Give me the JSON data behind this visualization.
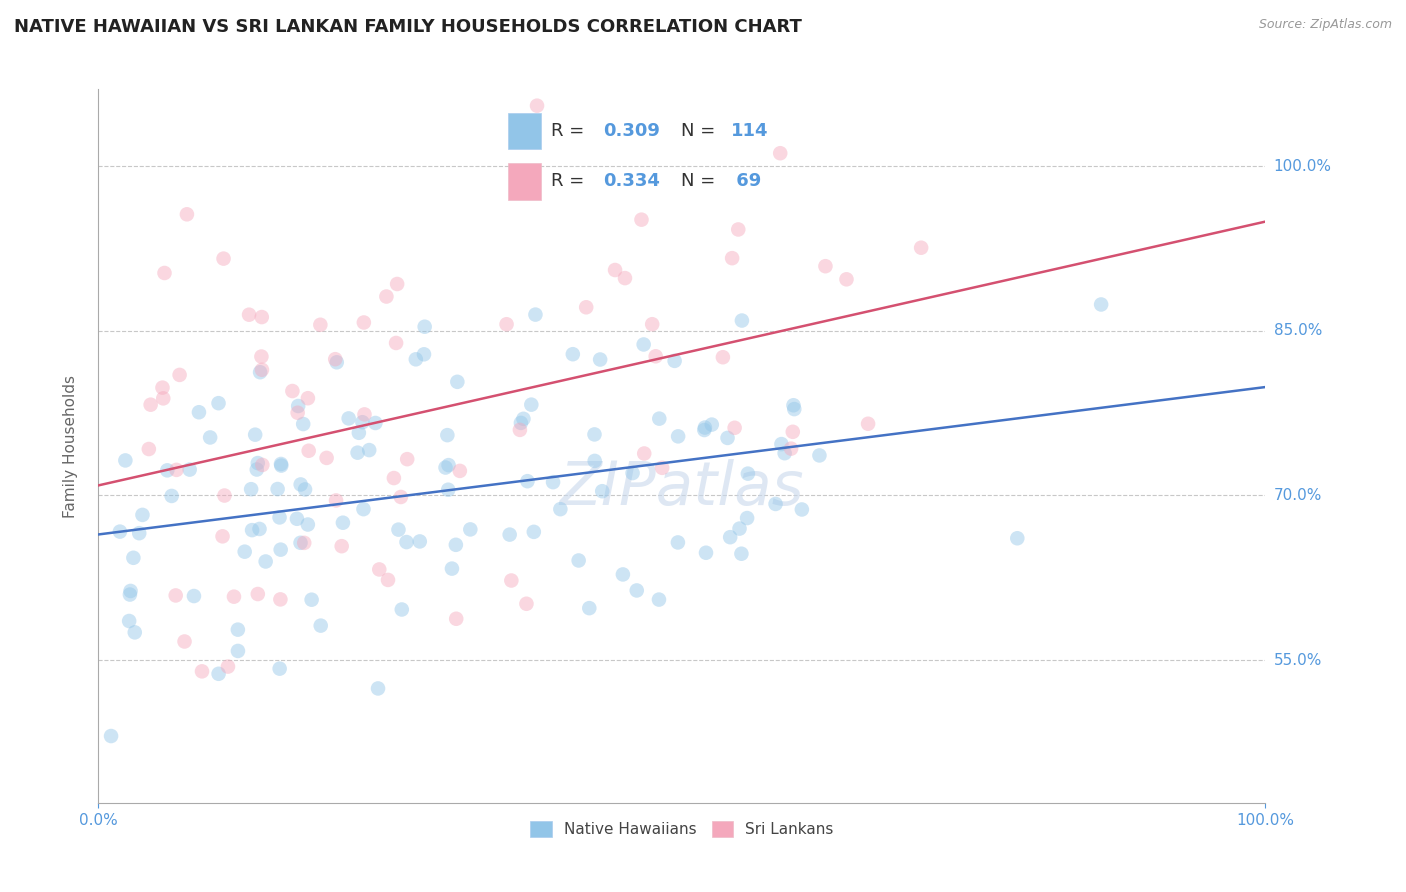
{
  "title": "NATIVE HAWAIIAN VS SRI LANKAN FAMILY HOUSEHOLDS CORRELATION CHART",
  "source": "Source: ZipAtlas.com",
  "ylabel": "Family Households",
  "xlim": [
    0,
    100
  ],
  "ylim": [
    42,
    107
  ],
  "ytick_positions": [
    55,
    70,
    85,
    100
  ],
  "ytick_labels": [
    "55.0%",
    "70.0%",
    "85.0%",
    "100.0%"
  ],
  "blue_color": "#92C5E8",
  "pink_color": "#F4A8BC",
  "blue_line_color": "#4472C4",
  "pink_line_color": "#D45070",
  "grid_color": "#C8C8C8",
  "background_color": "#FFFFFF",
  "right_label_color": "#5599DD",
  "R_blue": 0.309,
  "N_blue": 114,
  "R_pink": 0.334,
  "N_pink": 69,
  "blue_seed": 7,
  "pink_seed": 99,
  "legend_blue_label": "Native Hawaiians",
  "legend_pink_label": "Sri Lankans",
  "watermark": "ZIPatlas",
  "title_fontsize": 13,
  "label_fontsize": 11,
  "tick_fontsize": 11,
  "legend_fontsize": 13,
  "dot_size": 110,
  "dot_alpha": 0.45,
  "blue_line_intercept": 67.5,
  "blue_line_slope": 0.145,
  "pink_line_intercept": 71.5,
  "pink_line_slope": 0.195
}
